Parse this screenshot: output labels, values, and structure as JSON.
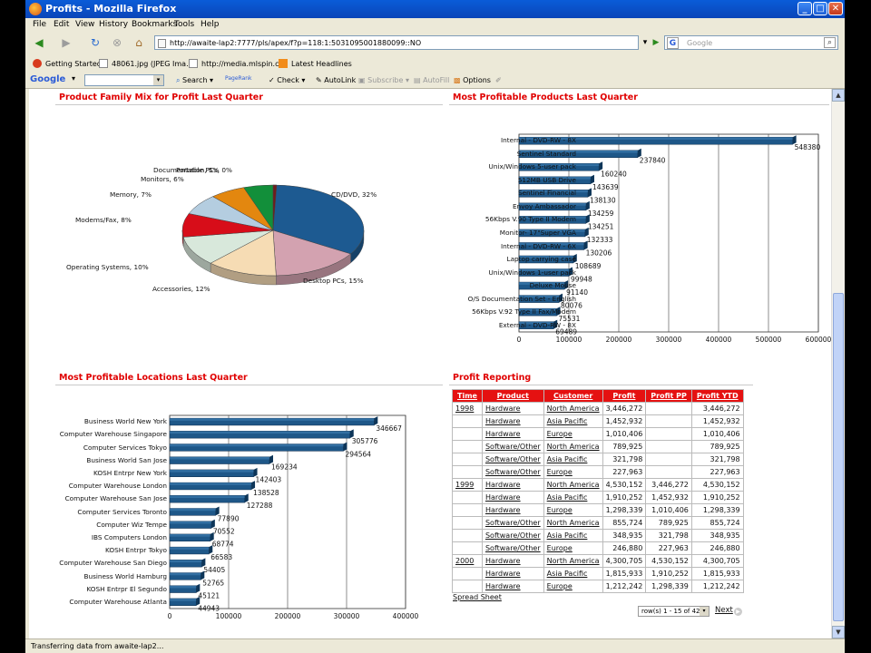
{
  "window": {
    "title": "Profits - Mozilla Firefox"
  },
  "menu": [
    "File",
    "Edit",
    "View",
    "History",
    "Bookmarks",
    "Tools",
    "Help"
  ],
  "address": {
    "url": "http://awaite-lap2:7777/pls/apex/f?p=118:1:5031095001880099::NO"
  },
  "search": {
    "placeholder": "Google"
  },
  "bookmarks": [
    "Getting Started",
    "48061.jpg (JPEG Ima...",
    "http://media.mlspin.c...",
    "Latest Headlines"
  ],
  "google_toolbar": {
    "brand": "Google",
    "search": "Search",
    "pagerank": "PageRank",
    "check": "Check",
    "autolink": "AutoLink",
    "subscribe": "Subscribe",
    "autofill": "AutoFill",
    "options": "Options"
  },
  "status": "Transferring data from awaite-lap2...",
  "regions": {
    "mix": "Product Family Mix for Profit Last Quarter",
    "products": "Most Profitable Products Last Quarter",
    "locations": "Most Profitable Locations Last Quarter",
    "reporting": "Profit Reporting"
  },
  "chart_data": [
    {
      "type": "pie",
      "title": "Product Family Mix for Profit Last Quarter",
      "categories": [
        "CD/DVD",
        "Desktop PCs",
        "Accessories",
        "Operating Systems",
        "Modems/Fax",
        "Memory",
        "Monitors",
        "Documentation",
        "Portable PCs"
      ],
      "values": [
        32,
        15,
        12,
        10,
        8,
        7,
        6,
        5,
        0
      ],
      "labels": [
        "CD/DVD, 32%",
        "Desktop PCs, 15%",
        "Accessories, 12%",
        "Operating Systems, 10%",
        "Modems/Fax, 8%",
        "Memory, 7%",
        "Monitors, 6%",
        "Documentation, 5%",
        "Portable PCs, 0%"
      ],
      "colors": [
        "#1d5a91",
        "#d3a2b0",
        "#f6dcb4",
        "#d8e8db",
        "#d70d19",
        "#b4cde0",
        "#e3870f",
        "#128f3a",
        "#6f1c1c"
      ]
    },
    {
      "type": "bar",
      "orientation": "horizontal",
      "title": "Most Profitable Products Last Quarter",
      "categories": [
        "Internal - DVD-RW - 8X",
        "Sentinel Standard",
        "Unix/Windows 5-user pack",
        "512MB USB Drive",
        "Sentinel Financial",
        "Envoy Ambassador",
        "56Kbps V.90 Type II Modem",
        "Monitor- 17\"Super VGA",
        "Internal - DVD-RW - 6X",
        "Laptop carrying case",
        "Unix/Windows 1-user pack",
        "Deluxe Mouse",
        "O/S Documentation Set - English",
        "56Kbps V.92 Type II Fax/Modem",
        "External - DVD-RW - 8X"
      ],
      "values": [
        548380,
        237840,
        160240,
        143639,
        138130,
        134259,
        134251,
        132333,
        130206,
        108689,
        99948,
        91140,
        80076,
        75531,
        69489
      ],
      "xlim": [
        0,
        600000
      ],
      "xticks": [
        "0",
        "100000",
        "200000",
        "300000",
        "400000",
        "500000",
        "600000"
      ]
    },
    {
      "type": "bar",
      "orientation": "horizontal",
      "title": "Most Profitable Locations Last Quarter",
      "categories": [
        "Business World New York",
        "Computer Warehouse Singapore",
        "Computer Services Tokyo",
        "Business World San Jose",
        "KOSH Entrpr New York",
        "Computer Warehouse London",
        "Computer Warehouse San Jose",
        "Computer Services Toronto",
        "Computer Wiz Tempe",
        "IBS Computers London",
        "KOSH Entrpr Tokyo",
        "Computer Warehouse San Diego",
        "Business World Hamburg",
        "KOSH Entrpr El Segundo",
        "Computer Warehouse Atlanta"
      ],
      "values": [
        346667,
        305776,
        294564,
        169234,
        142403,
        138528,
        127288,
        77890,
        70552,
        68774,
        66583,
        54405,
        52765,
        45121,
        44943
      ],
      "xlim": [
        0,
        400000
      ],
      "xticks": [
        "0",
        "100000",
        "200000",
        "300000",
        "400000"
      ]
    }
  ],
  "report": {
    "headers": [
      "Time",
      "Product",
      "Customer",
      "Profit",
      "Profit PP",
      "Profit YTD"
    ],
    "rows": [
      [
        "1998",
        "Hardware",
        "North America",
        "3,446,272",
        "",
        "3,446,272"
      ],
      [
        "",
        "Hardware",
        "Asia Pacific",
        "1,452,932",
        "",
        "1,452,932"
      ],
      [
        "",
        "Hardware",
        "Europe",
        "1,010,406",
        "",
        "1,010,406"
      ],
      [
        "",
        "Software/Other",
        "North America",
        "789,925",
        "",
        "789,925"
      ],
      [
        "",
        "Software/Other",
        "Asia Pacific",
        "321,798",
        "",
        "321,798"
      ],
      [
        "",
        "Software/Other",
        "Europe",
        "227,963",
        "",
        "227,963"
      ],
      [
        "1999",
        "Hardware",
        "North America",
        "4,530,152",
        "3,446,272",
        "4,530,152"
      ],
      [
        "",
        "Hardware",
        "Asia Pacific",
        "1,910,252",
        "1,452,932",
        "1,910,252"
      ],
      [
        "",
        "Hardware",
        "Europe",
        "1,298,339",
        "1,010,406",
        "1,298,339"
      ],
      [
        "",
        "Software/Other",
        "North America",
        "855,724",
        "789,925",
        "855,724"
      ],
      [
        "",
        "Software/Other",
        "Asia Pacific",
        "348,935",
        "321,798",
        "348,935"
      ],
      [
        "",
        "Software/Other",
        "Europe",
        "246,880",
        "227,963",
        "246,880"
      ],
      [
        "2000",
        "Hardware",
        "North America",
        "4,300,705",
        "4,530,152",
        "4,300,705"
      ],
      [
        "",
        "Hardware",
        "Asia Pacific",
        "1,815,933",
        "1,910,252",
        "1,815,933"
      ],
      [
        "",
        "Hardware",
        "Europe",
        "1,212,242",
        "1,298,339",
        "1,212,242"
      ]
    ],
    "spreadsheet": "Spread Sheet",
    "pagination": "row(s) 1 - 15 of 42",
    "next": "Next"
  }
}
